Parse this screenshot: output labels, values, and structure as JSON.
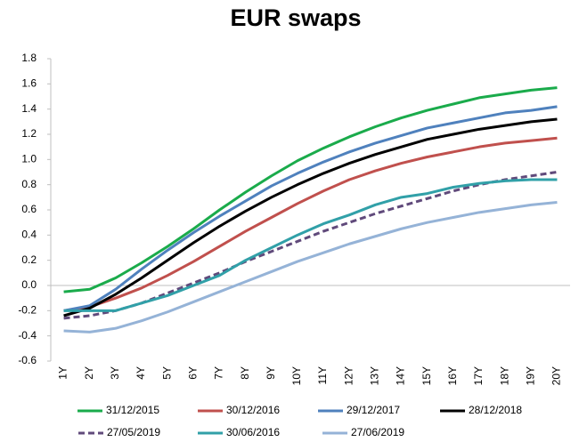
{
  "chart_data": {
    "type": "line",
    "title": "EUR swaps",
    "categories": [
      "1Y",
      "2Y",
      "3Y",
      "4Y",
      "5Y",
      "6Y",
      "7Y",
      "8Y",
      "9Y",
      "10Y",
      "11Y",
      "12Y",
      "13Y",
      "14Y",
      "15Y",
      "16Y",
      "17Y",
      "18Y",
      "19Y",
      "20Y"
    ],
    "ylim": [
      -0.6,
      1.8
    ],
    "yticks": [
      -0.6,
      -0.4,
      -0.2,
      {
        "value": 0,
        "label": "0.0"
      },
      0.2,
      0.4,
      0.6,
      0.8,
      {
        "value": 1,
        "label": "1.0"
      },
      1.2,
      1.4,
      1.6,
      1.8
    ],
    "grid": false,
    "series": [
      {
        "name": "31/12/2015",
        "color": "#1aab4b",
        "values": [
          -0.05,
          -0.03,
          0.06,
          0.18,
          0.31,
          0.45,
          0.6,
          0.74,
          0.87,
          0.99,
          1.09,
          1.18,
          1.26,
          1.33,
          1.39,
          1.44,
          1.49,
          1.52,
          1.55,
          1.57
        ]
      },
      {
        "name": "30/12/2016",
        "color": "#c0504d",
        "values": [
          -0.2,
          -0.17,
          -0.1,
          -0.02,
          0.08,
          0.19,
          0.31,
          0.43,
          0.54,
          0.65,
          0.75,
          0.84,
          0.91,
          0.97,
          1.02,
          1.06,
          1.1,
          1.13,
          1.15,
          1.17
        ]
      },
      {
        "name": "29/12/2017",
        "color": "#4f81bd",
        "values": [
          -0.2,
          -0.16,
          -0.03,
          0.13,
          0.28,
          0.42,
          0.55,
          0.67,
          0.79,
          0.89,
          0.98,
          1.06,
          1.13,
          1.19,
          1.25,
          1.29,
          1.33,
          1.37,
          1.39,
          1.42
        ]
      },
      {
        "name": "28/12/2018",
        "color": "#000000",
        "values": [
          -0.24,
          -0.18,
          -0.07,
          0.06,
          0.2,
          0.34,
          0.47,
          0.59,
          0.7,
          0.8,
          0.89,
          0.97,
          1.04,
          1.1,
          1.16,
          1.2,
          1.24,
          1.27,
          1.3,
          1.32
        ]
      },
      {
        "name": "27/05/2019",
        "color": "#604a7b",
        "dashed": true,
        "values": [
          -0.26,
          -0.24,
          -0.2,
          -0.14,
          -0.06,
          0.02,
          0.1,
          0.19,
          0.27,
          0.35,
          0.43,
          0.5,
          0.57,
          0.63,
          0.69,
          0.75,
          0.8,
          0.84,
          0.87,
          0.9
        ]
      },
      {
        "name": "30/06/2016",
        "color": "#31a0a8",
        "values": [
          -0.2,
          -0.2,
          -0.2,
          -0.14,
          -0.08,
          0.0,
          0.08,
          0.2,
          0.3,
          0.4,
          0.49,
          0.56,
          0.64,
          0.7,
          0.73,
          0.78,
          0.81,
          0.83,
          0.84,
          0.84
        ]
      },
      {
        "name": "27/06/2019",
        "color": "#95b3d7",
        "values": [
          -0.36,
          -0.37,
          -0.34,
          -0.28,
          -0.21,
          -0.13,
          -0.05,
          0.03,
          0.11,
          0.19,
          0.26,
          0.33,
          0.39,
          0.45,
          0.5,
          0.54,
          0.58,
          0.61,
          0.64,
          0.66
        ]
      }
    ]
  }
}
